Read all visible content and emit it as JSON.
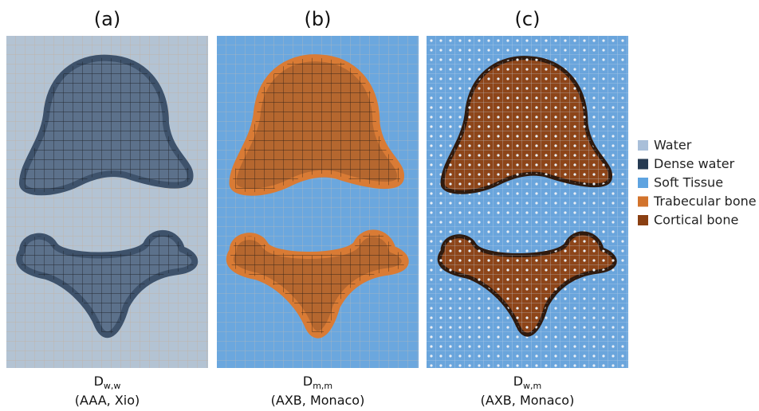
{
  "panels": [
    {
      "label": "(a)",
      "dose_symbol": "D",
      "dose_subscript": "w,w",
      "method": "(AAA, Xio)"
    },
    {
      "label": "(b)",
      "dose_symbol": "D",
      "dose_subscript": "m,m",
      "method": "(AXB, Monaco)"
    },
    {
      "label": "(c)",
      "dose_symbol": "D",
      "dose_subscript": "w,m",
      "method": "(AXB, Monaco)"
    }
  ],
  "legend": [
    {
      "name": "Water",
      "color": "#a9bfd9"
    },
    {
      "name": "Dense water",
      "color": "#253a52"
    },
    {
      "name": "Soft Tissue",
      "color": "#5ea3e0"
    },
    {
      "name": "Trabecular bone",
      "color": "#d2732c"
    },
    {
      "name": "Cortical bone",
      "color": "#8a3f12"
    }
  ]
}
